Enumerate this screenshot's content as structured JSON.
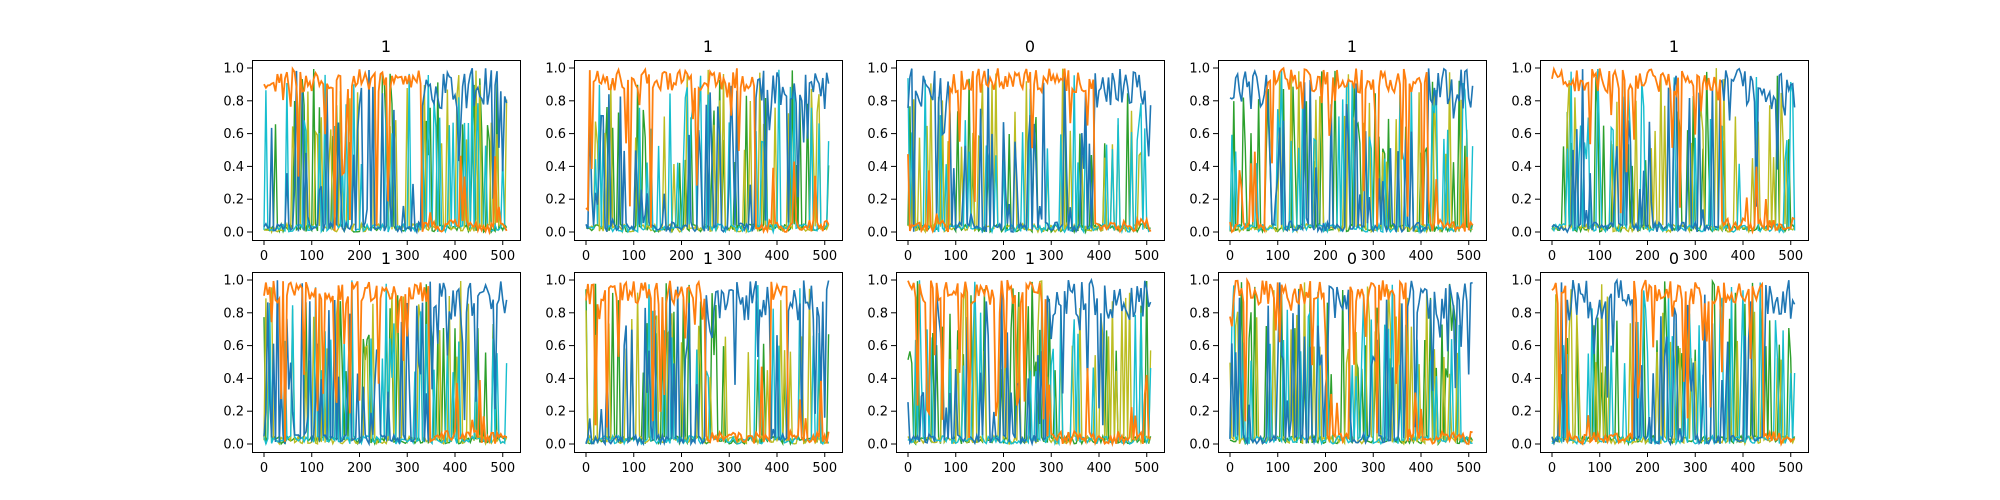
{
  "figure": {
    "background": "#ffffff",
    "series_colors": [
      "#1f77b4",
      "#17becf",
      "#bcbd22",
      "#2ca02c",
      "#ff7f0e"
    ]
  },
  "chart_data": [
    {
      "type": "line",
      "title": "1",
      "xlabel": "",
      "ylabel": "",
      "xlim": [
        0,
        511
      ],
      "ylim": [
        0.0,
        1.0
      ],
      "xticks": [
        "0",
        "100",
        "200",
        "300",
        "400",
        "500"
      ],
      "yticks": [
        "0.0",
        "0.2",
        "0.4",
        "0.6",
        "0.8",
        "1.0"
      ],
      "grid": false,
      "orange_dominant_x_ranges": [
        [
          0,
          330
        ]
      ]
    },
    {
      "type": "line",
      "title": "1",
      "xlabel": "",
      "ylabel": "",
      "xlim": [
        0,
        511
      ],
      "ylim": [
        0.0,
        1.0
      ],
      "xticks": [
        "0",
        "100",
        "200",
        "300",
        "400",
        "500"
      ],
      "yticks": [
        "0.0",
        "0.2",
        "0.4",
        "0.6",
        "0.8",
        "1.0"
      ],
      "grid": false,
      "orange_dominant_x_ranges": [
        [
          0,
          355
        ]
      ]
    },
    {
      "type": "line",
      "title": "0",
      "xlabel": "",
      "ylabel": "",
      "xlim": [
        0,
        511
      ],
      "ylim": [
        0.0,
        1.0
      ],
      "xticks": [
        "0",
        "100",
        "200",
        "300",
        "400",
        "500"
      ],
      "yticks": [
        "0.0",
        "0.2",
        "0.4",
        "0.6",
        "0.8",
        "1.0"
      ],
      "grid": false,
      "orange_dominant_x_ranges": [
        [
          85,
          390
        ]
      ]
    },
    {
      "type": "line",
      "title": "1",
      "xlabel": "",
      "ylabel": "",
      "xlim": [
        0,
        511
      ],
      "ylim": [
        0.0,
        1.0
      ],
      "xticks": [
        "0",
        "100",
        "200",
        "300",
        "400",
        "500"
      ],
      "yticks": [
        "0.0",
        "0.2",
        "0.4",
        "0.6",
        "0.8",
        "1.0"
      ],
      "grid": false,
      "orange_dominant_x_ranges": [
        [
          75,
          415
        ]
      ]
    },
    {
      "type": "line",
      "title": "1",
      "xlabel": "",
      "ylabel": "",
      "xlim": [
        0,
        511
      ],
      "ylim": [
        0.0,
        1.0
      ],
      "xticks": [
        "0",
        "100",
        "200",
        "300",
        "400",
        "500"
      ],
      "yticks": [
        "0.0",
        "0.2",
        "0.4",
        "0.6",
        "0.8",
        "1.0"
      ],
      "grid": false,
      "orange_dominant_x_ranges": [
        [
          0,
          355
        ]
      ]
    },
    {
      "type": "line",
      "title": "1",
      "xlabel": "",
      "ylabel": "",
      "xlim": [
        0,
        511
      ],
      "ylim": [
        0.0,
        1.0
      ],
      "xticks": [
        "0",
        "100",
        "200",
        "300",
        "400",
        "500"
      ],
      "yticks": [
        "0.0",
        "0.2",
        "0.4",
        "0.6",
        "0.8",
        "1.0"
      ],
      "grid": false,
      "orange_dominant_x_ranges": [
        [
          0,
          345
        ]
      ]
    },
    {
      "type": "line",
      "title": "1",
      "xlabel": "",
      "ylabel": "",
      "xlim": [
        0,
        511
      ],
      "ylim": [
        0.0,
        1.0
      ],
      "xticks": [
        "0",
        "100",
        "200",
        "300",
        "400",
        "500"
      ],
      "yticks": [
        "0.0",
        "0.2",
        "0.4",
        "0.6",
        "0.8",
        "1.0"
      ],
      "grid": false,
      "orange_dominant_x_ranges": [
        [
          0,
          250
        ],
        [
          385,
          420
        ]
      ]
    },
    {
      "type": "line",
      "title": "1",
      "xlabel": "",
      "ylabel": "",
      "xlim": [
        0,
        511
      ],
      "ylim": [
        0.0,
        1.0
      ],
      "xticks": [
        "0",
        "100",
        "200",
        "300",
        "400",
        "500"
      ],
      "yticks": [
        "0.0",
        "0.2",
        "0.4",
        "0.6",
        "0.8",
        "1.0"
      ],
      "grid": false,
      "orange_dominant_x_ranges": [
        [
          0,
          290
        ]
      ]
    },
    {
      "type": "line",
      "title": "0",
      "xlabel": "",
      "ylabel": "",
      "xlim": [
        0,
        511
      ],
      "ylim": [
        0.0,
        1.0
      ],
      "xticks": [
        "0",
        "100",
        "200",
        "300",
        "400",
        "500"
      ],
      "yticks": [
        "0.0",
        "0.2",
        "0.4",
        "0.6",
        "0.8",
        "1.0"
      ],
      "grid": false,
      "orange_dominant_x_ranges": [
        [
          0,
          200
        ],
        [
          250,
          370
        ]
      ]
    },
    {
      "type": "line",
      "title": "0",
      "xlabel": "",
      "ylabel": "",
      "xlim": [
        0,
        511
      ],
      "ylim": [
        0.0,
        1.0
      ],
      "xticks": [
        "0",
        "100",
        "200",
        "300",
        "400",
        "500"
      ],
      "yticks": [
        "0.0",
        "0.2",
        "0.4",
        "0.6",
        "0.8",
        "1.0"
      ],
      "grid": false,
      "orange_dominant_x_ranges": [
        [
          0,
          30
        ],
        [
          170,
          440
        ]
      ]
    }
  ]
}
